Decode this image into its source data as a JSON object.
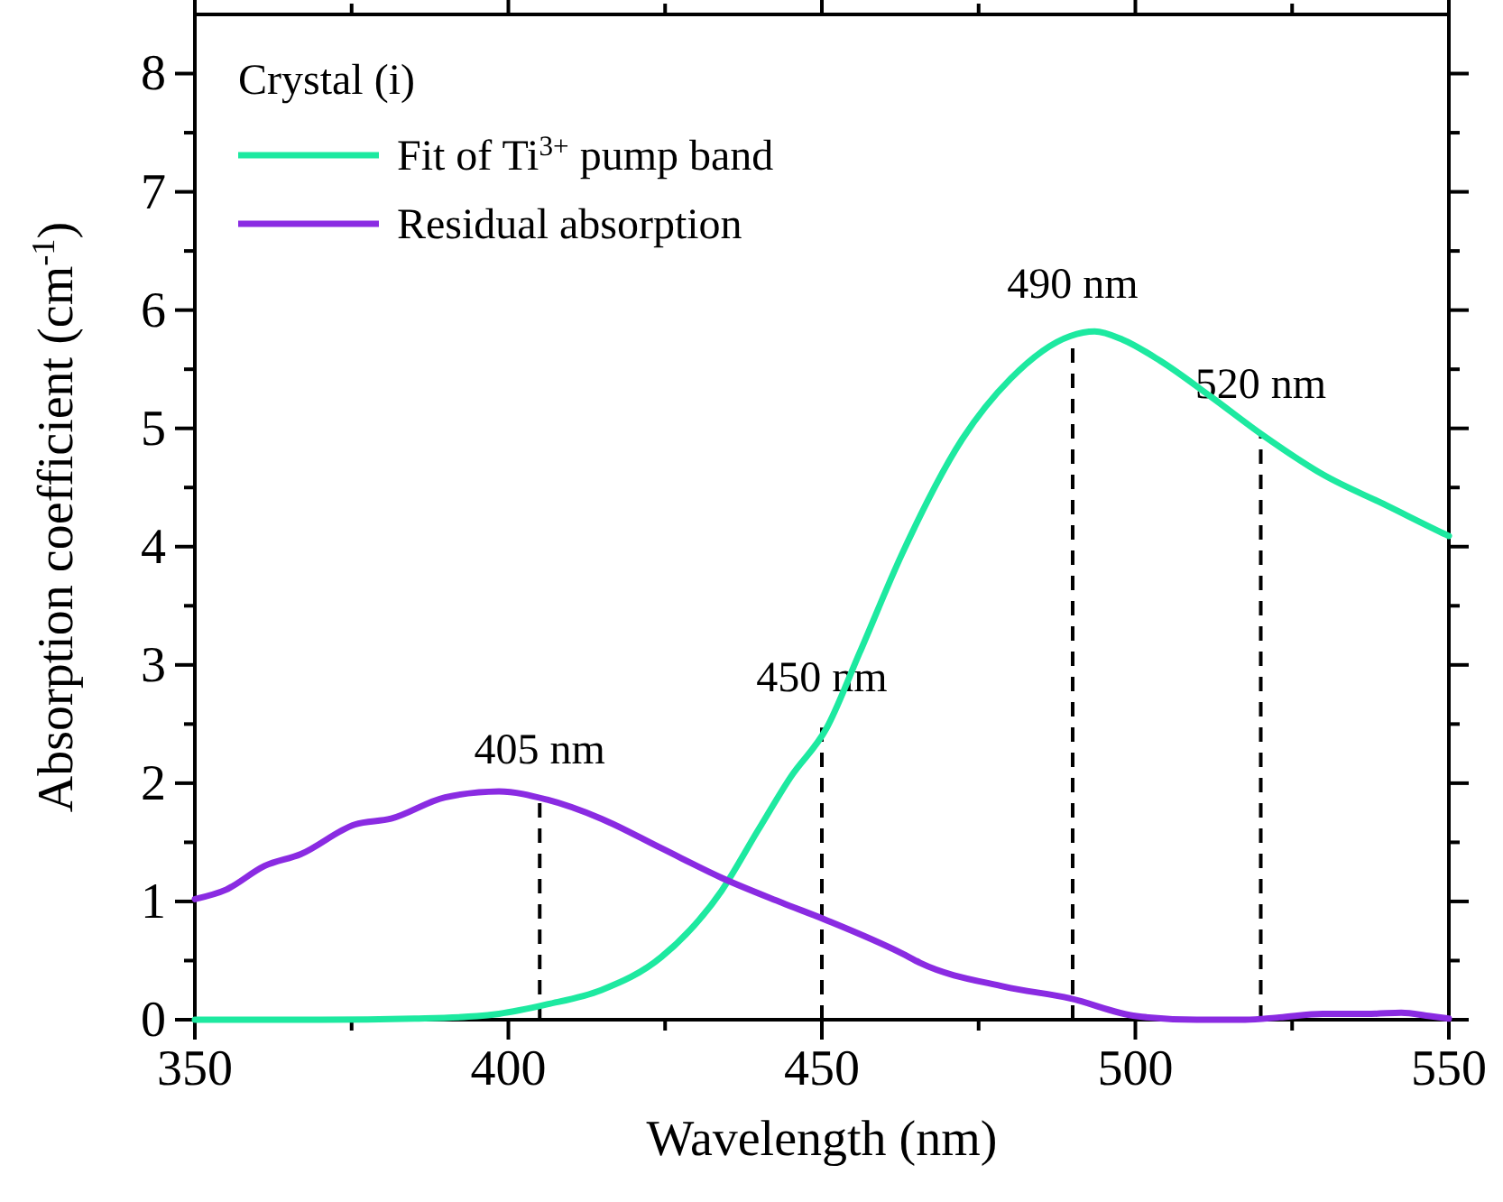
{
  "chart_data": {
    "type": "line",
    "xlabel": "Wavelength (nm)",
    "ylabel": "Absorption coefficient (cm$^{-1}$)",
    "legend_title": "Crystal (i)",
    "legend": "top left",
    "grid": false,
    "line_style": "solid",
    "marker": "none",
    "xlim": [
      350,
      550
    ],
    "ylim": [
      0,
      8.5
    ],
    "xticks": [
      350,
      {
        "value": 375,
        "label": null
      },
      400,
      {
        "value": 425,
        "label": null
      },
      450,
      {
        "value": 475,
        "label": null
      },
      500,
      {
        "value": 525,
        "label": null
      },
      550
    ],
    "yticks": [
      0,
      {
        "value": 0.5,
        "label": null
      },
      1,
      {
        "value": 1.5,
        "label": null
      },
      2,
      {
        "value": 2.5,
        "label": null
      },
      3,
      {
        "value": 3.5,
        "label": null
      },
      4,
      {
        "value": 4.5,
        "label": null
      },
      5,
      {
        "value": 5.5,
        "label": null
      },
      6,
      {
        "value": 6.5,
        "label": null
      },
      7,
      {
        "value": 7.5,
        "label": null
      },
      8
    ],
    "series": [
      {
        "name": "Fit of Ti$^{3+}$ pump band",
        "color": "#1de9a0",
        "x": [
          350,
          370,
          385,
          395,
          398.5,
          406.2,
          414.8,
          424.4,
          434,
          439.8,
          445,
          450.8,
          456,
          462.8,
          472.4,
          480.1,
          489.6,
          493.5,
          498,
          504,
          512,
          520.4,
          529.9,
          540,
          549.6,
          550
        ],
        "values": [
          0,
          0,
          0.01,
          0.03,
          0.05,
          0.13,
          0.25,
          0.53,
          1.09,
          1.6,
          2.05,
          2.47,
          3.1,
          3.94,
          4.91,
          5.42,
          5.78,
          5.82,
          5.75,
          5.57,
          5.27,
          4.94,
          4.61,
          4.35,
          4.1,
          4.09
        ]
      },
      {
        "name": "Residual absorption",
        "color": "#8a2be2",
        "x": [
          350,
          355,
          361.1,
          366.9,
          375.5,
          381.3,
          389.9,
          398.5,
          406.2,
          414.8,
          424.4,
          434,
          443.6,
          450.8,
          462.8,
          465.7,
          479.1,
          489.6,
          500.2,
          509.8,
          517.5,
          523,
          529.9,
          537.6,
          542.4,
          547,
          550
        ],
        "values": [
          1.02,
          1.1,
          1.3,
          1.4,
          1.65,
          1.7,
          1.88,
          1.93,
          1.86,
          1.7,
          1.45,
          1.2,
          0.99,
          0.84,
          0.56,
          0.48,
          0.28,
          0.18,
          0.03,
          0,
          0,
          0.02,
          0.05,
          0.05,
          0.06,
          0.03,
          0.01
        ]
      }
    ],
    "annotations": [
      {
        "text": "405 nm",
        "x": 405,
        "y": 1.86
      },
      {
        "text": "450 nm",
        "x": 450,
        "y": 2.47
      },
      {
        "text": "490 nm",
        "x": 490,
        "y": 5.8
      },
      {
        "text": "520 nm",
        "x": 520,
        "y": 4.95
      }
    ]
  }
}
